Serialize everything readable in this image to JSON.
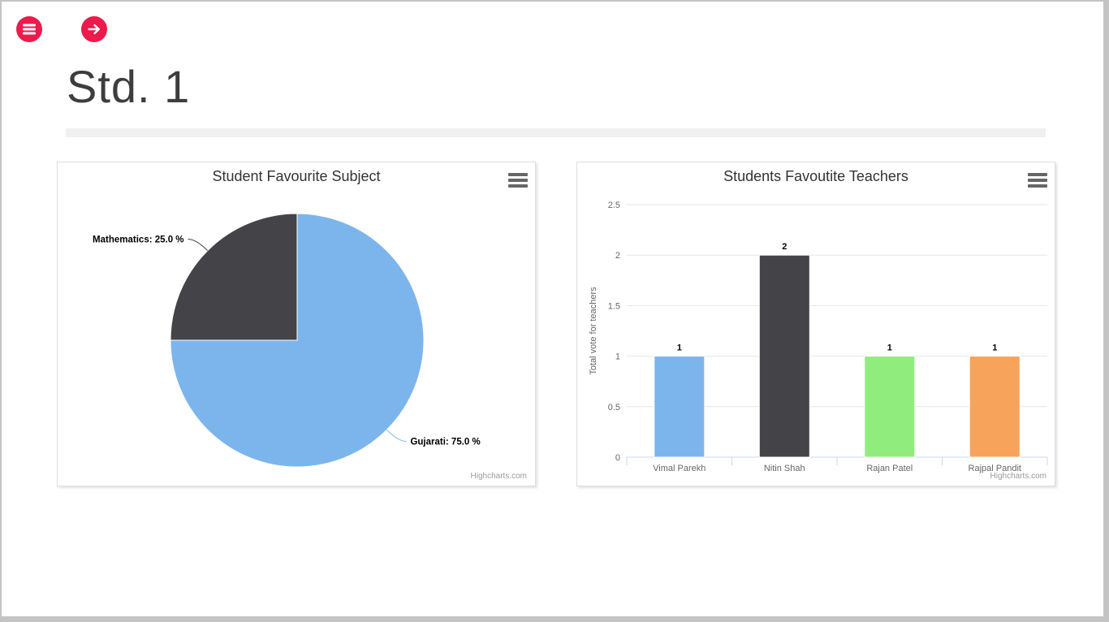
{
  "page": {
    "title": "Std. 1"
  },
  "header": {
    "menu_button": {
      "icon": "hamburger-icon"
    },
    "next_button": {
      "icon": "arrow-right-icon"
    }
  },
  "colors": {
    "accent": "#ed1a4b",
    "frame": "#c4c4c4",
    "divider": "#f0f0f0",
    "card_border": "#dedede",
    "grid": "#e6e6e6",
    "axis_line": "#ccd6eb",
    "tick_text": "#666666",
    "title_text": "#333333",
    "data_label_text": "#000000",
    "credits_text": "#999999",
    "heading_text": "#3d3d3d"
  },
  "chart_data": [
    {
      "type": "pie",
      "title": "Student Favourite Subject",
      "slices": [
        {
          "name": "Gujarati",
          "percent": 75.0,
          "label": "Gujarati: 75.0 %",
          "color": "#7cb5ec"
        },
        {
          "name": "Mathematics",
          "percent": 25.0,
          "label": "Mathematics: 25.0 %",
          "color": "#434348"
        }
      ],
      "start_angle_deg": 0,
      "direction": "clockwise",
      "credits": "Highcharts.com"
    },
    {
      "type": "bar",
      "title": "Students Favoutite Teachers",
      "categories": [
        "Vimal Parekh",
        "Nitin Shah",
        "Rajan Patel",
        "Rajpal Pandit"
      ],
      "values": [
        1,
        2,
        1,
        1
      ],
      "data_labels": [
        "1",
        "2",
        "1",
        "1"
      ],
      "bar_colors": [
        "#7cb5ec",
        "#434348",
        "#90ed7d",
        "#f7a35c"
      ],
      "xlabel": "",
      "ylabel": "Total vote for teachers",
      "ylim": [
        0,
        2.5
      ],
      "ytick_step": 0.5,
      "yticks": [
        "0",
        "0.5",
        "1",
        "1.5",
        "2",
        "2.5"
      ],
      "grid": true,
      "legend": "none",
      "credits": "Highcharts.com"
    }
  ]
}
